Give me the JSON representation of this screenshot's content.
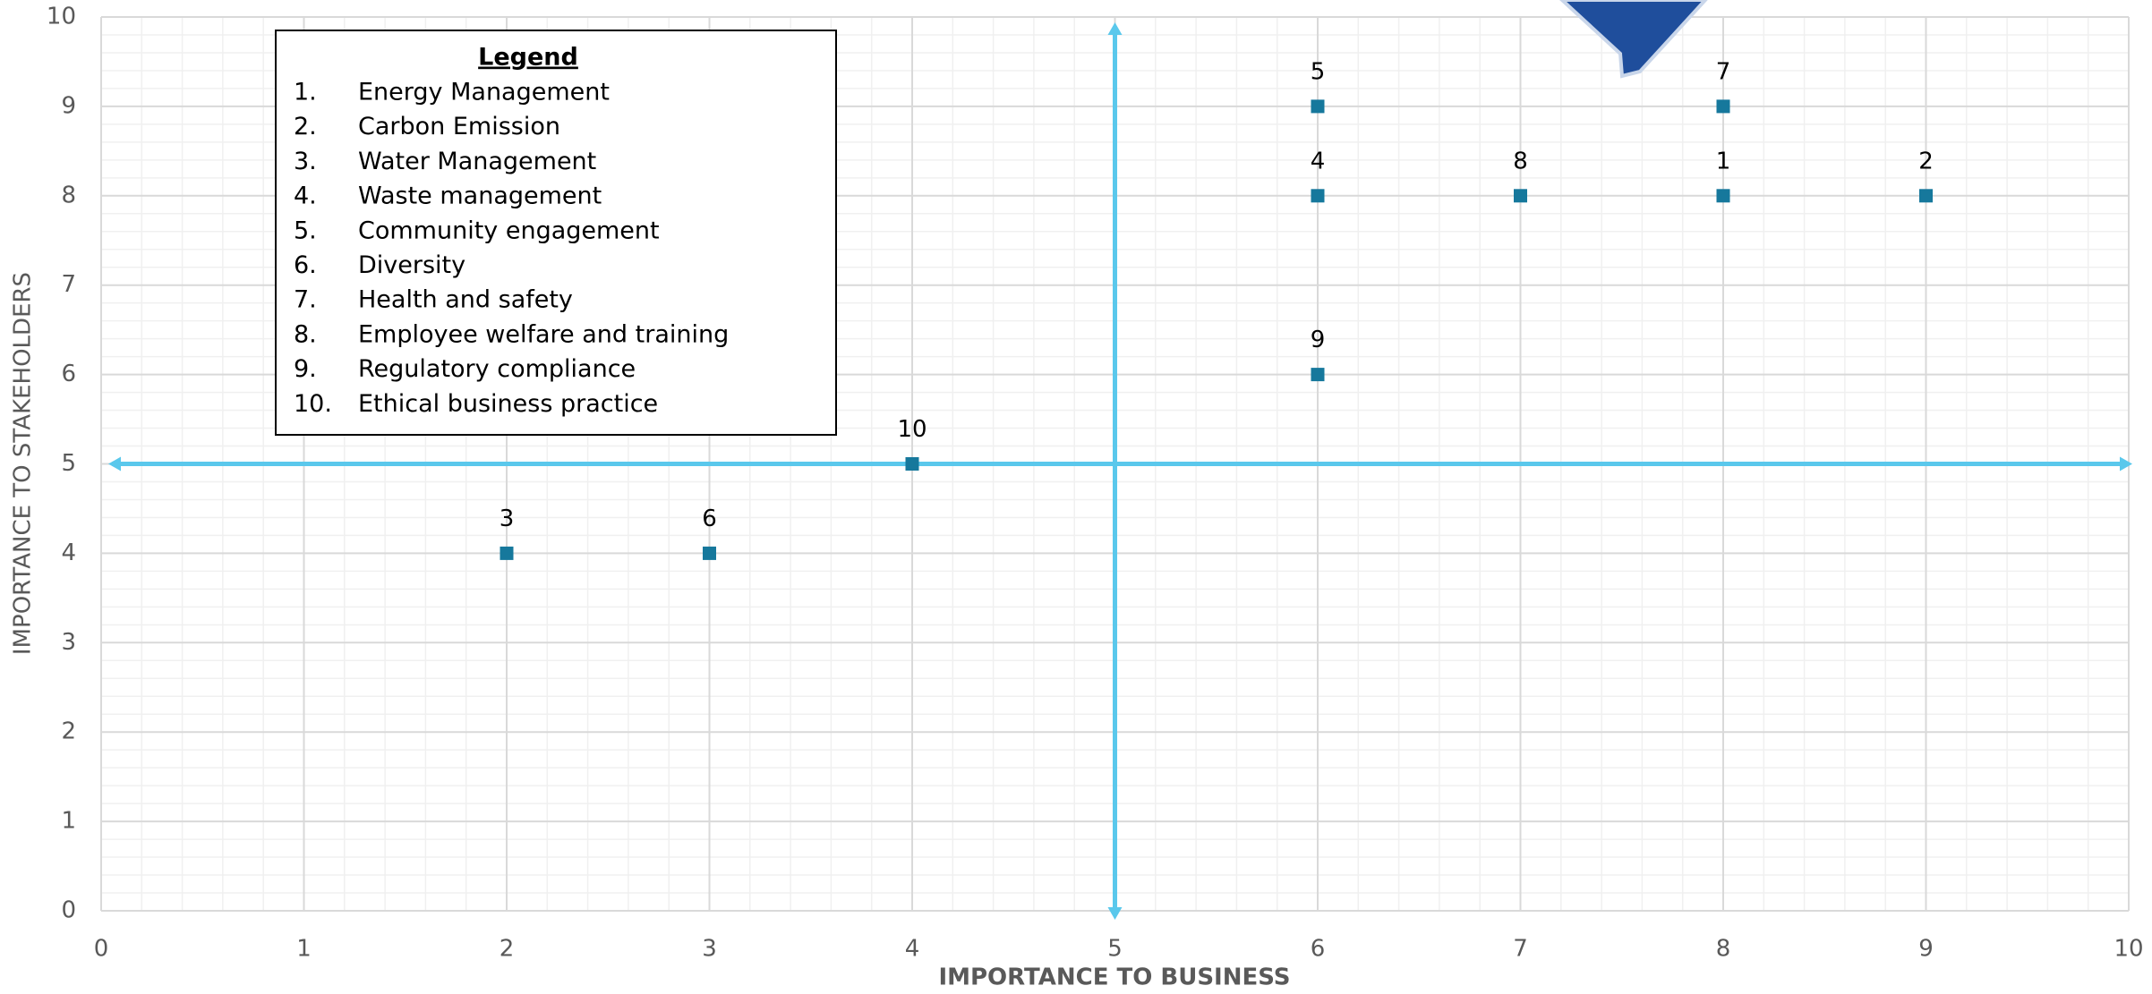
{
  "chart_data": {
    "type": "scatter",
    "x_label": "IMPORTANCE TO BUSINESS",
    "y_label": "IMPORTANCE TO STAKEHOLDERS",
    "x": [
      8,
      9,
      2,
      6,
      6,
      3,
      8,
      7,
      6,
      4
    ],
    "y": [
      8,
      8,
      4,
      8,
      9,
      4,
      9,
      8,
      6,
      5
    ],
    "labels": [
      "1",
      "2",
      "3",
      "4",
      "5",
      "6",
      "7",
      "8",
      "9",
      "10"
    ],
    "color": "#16789c",
    "xlim": [
      0,
      10
    ],
    "ylim": [
      0,
      10
    ],
    "xticks": [
      0,
      1,
      2,
      3,
      4,
      5,
      6,
      7,
      8,
      9,
      10
    ],
    "yticks": [
      0,
      1,
      2,
      3,
      4,
      5,
      6,
      7,
      8,
      9,
      10
    ],
    "grid": true,
    "minor_grid_divisions": 5,
    "quadrant_x": 5,
    "quadrant_y": 5,
    "quadrant_color": "#5ac8ec",
    "legend": {
      "title": "Legend",
      "items": [
        {
          "number": "1.",
          "text": "Energy Management"
        },
        {
          "number": "2.",
          "text": "Carbon Emission"
        },
        {
          "number": "3.",
          "text": "Water Management"
        },
        {
          "number": "4.",
          "text": "Waste management"
        },
        {
          "number": "5.",
          "text": "Community engagement"
        },
        {
          "number": "6.",
          "text": "Diversity"
        },
        {
          "number": "7.",
          "text": "Health and safety"
        },
        {
          "number": "8.",
          "text": "Employee welfare and training"
        },
        {
          "number": "9.",
          "text": "Regulatory compliance"
        },
        {
          "number": "10.",
          "text": "Ethical business practice"
        }
      ]
    }
  }
}
